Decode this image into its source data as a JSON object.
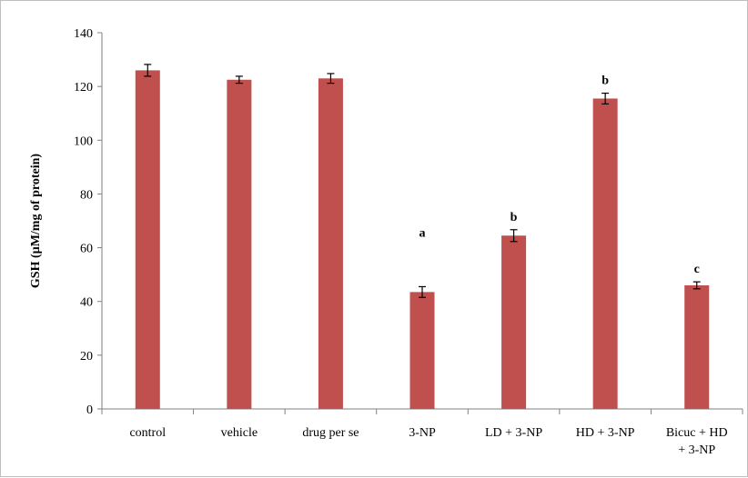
{
  "chart_data": {
    "type": "bar",
    "title": "",
    "xlabel": "",
    "ylabel": "GSH (µM/mg of protein)",
    "ylim": [
      0,
      140
    ],
    "yticks": [
      0,
      20,
      40,
      60,
      80,
      100,
      120,
      140
    ],
    "grid": false,
    "legend": "none",
    "categories": [
      [
        "control"
      ],
      [
        "vehicle"
      ],
      [
        "drug per se"
      ],
      [
        "3-NP"
      ],
      [
        "LD + 3-NP"
      ],
      [
        "HD + 3-NP"
      ],
      [
        "Bicuc + HD",
        "+ 3-NP"
      ]
    ],
    "values": [
      126,
      122.5,
      123,
      43.5,
      64.5,
      115.5,
      46
    ],
    "errors": [
      2.2,
      1.3,
      1.8,
      2.0,
      2.2,
      2.0,
      1.3
    ],
    "annotations": [
      "",
      "",
      "",
      "a",
      "b",
      "b",
      "c"
    ],
    "bar_color": "#c0504d"
  }
}
